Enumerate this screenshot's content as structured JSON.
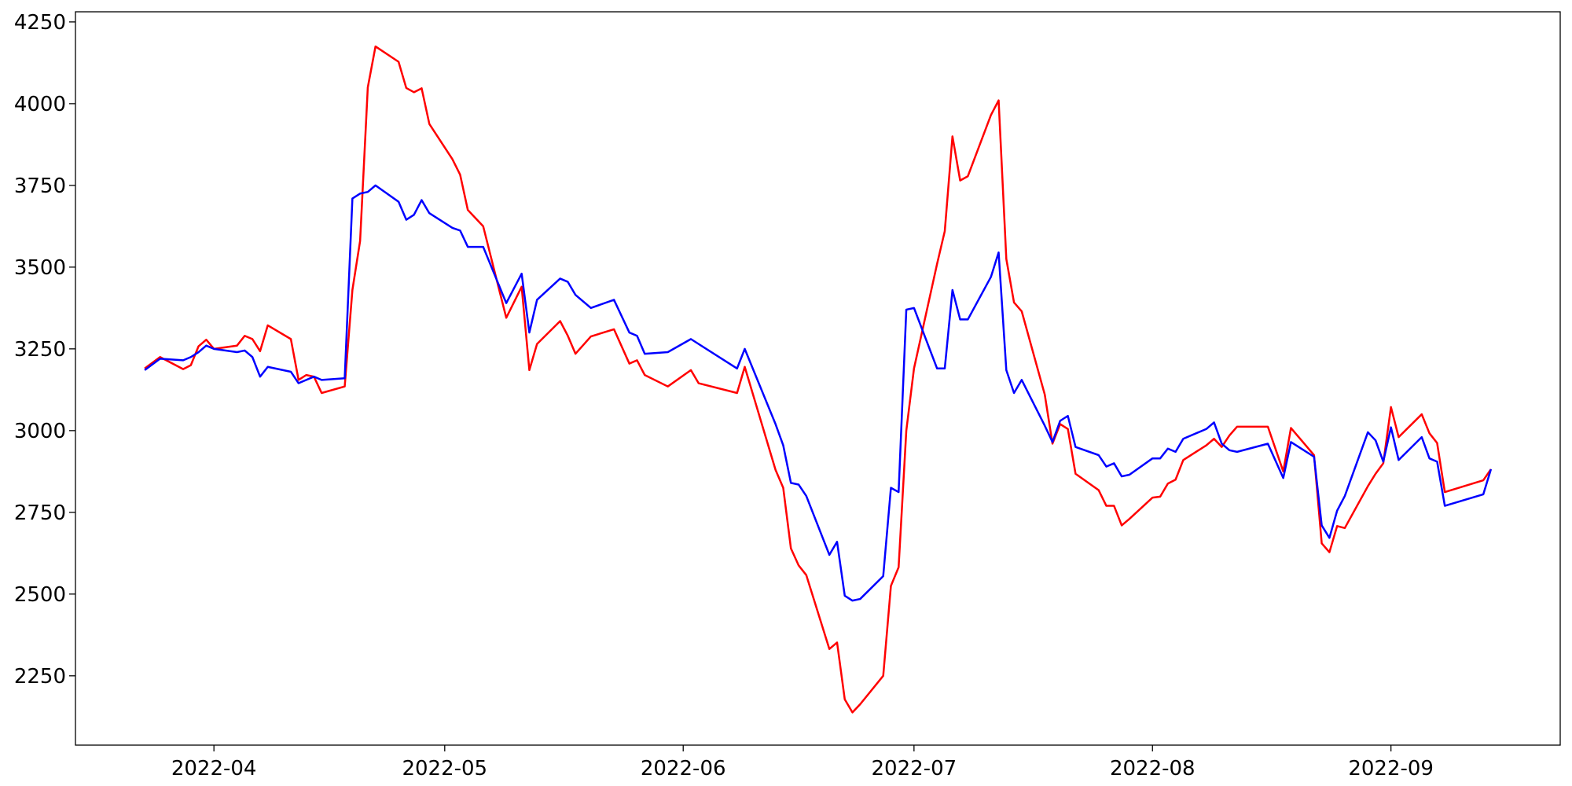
{
  "chart_data": {
    "type": "line",
    "x": [
      "2022-03-23",
      "2022-03-25",
      "2022-03-28",
      "2022-03-29",
      "2022-03-30",
      "2022-03-31",
      "2022-04-01",
      "2022-04-04",
      "2022-04-05",
      "2022-04-06",
      "2022-04-07",
      "2022-04-08",
      "2022-04-11",
      "2022-04-12",
      "2022-04-13",
      "2022-04-14",
      "2022-04-15",
      "2022-04-18",
      "2022-04-19",
      "2022-04-20",
      "2022-04-21",
      "2022-04-22",
      "2022-04-25",
      "2022-04-26",
      "2022-04-27",
      "2022-04-28",
      "2022-04-29",
      "2022-05-02",
      "2022-05-03",
      "2022-05-04",
      "2022-05-05",
      "2022-05-06",
      "2022-05-09",
      "2022-05-11",
      "2022-05-12",
      "2022-05-13",
      "2022-05-16",
      "2022-05-17",
      "2022-05-18",
      "2022-05-20",
      "2022-05-23",
      "2022-05-25",
      "2022-05-26",
      "2022-05-27",
      "2022-05-30",
      "2022-06-02",
      "2022-06-03",
      "2022-06-08",
      "2022-06-09",
      "2022-06-13",
      "2022-06-14",
      "2022-06-15",
      "2022-06-16",
      "2022-06-17",
      "2022-06-20",
      "2022-06-21",
      "2022-06-22",
      "2022-06-23",
      "2022-06-24",
      "2022-06-27",
      "2022-06-28",
      "2022-06-29",
      "2022-06-30",
      "2022-07-01",
      "2022-07-04",
      "2022-07-05",
      "2022-07-06",
      "2022-07-07",
      "2022-07-08",
      "2022-07-11",
      "2022-07-12",
      "2022-07-13",
      "2022-07-14",
      "2022-07-15",
      "2022-07-18",
      "2022-07-19",
      "2022-07-20",
      "2022-07-21",
      "2022-07-22",
      "2022-07-25",
      "2022-07-26",
      "2022-07-27",
      "2022-07-28",
      "2022-07-29",
      "2022-08-01",
      "2022-08-02",
      "2022-08-03",
      "2022-08-04",
      "2022-08-05",
      "2022-08-08",
      "2022-08-09",
      "2022-08-10",
      "2022-08-11",
      "2022-08-12",
      "2022-08-16",
      "2022-08-18",
      "2022-08-19",
      "2022-08-22",
      "2022-08-23",
      "2022-08-24",
      "2022-08-25",
      "2022-08-26",
      "2022-08-29",
      "2022-08-30",
      "2022-08-31",
      "2022-09-01",
      "2022-09-02",
      "2022-09-05",
      "2022-09-06",
      "2022-09-07",
      "2022-09-08",
      "2022-09-13",
      "2022-09-14"
    ],
    "series": [
      {
        "color": "#ff0000",
        "values": [
          3190,
          3225,
          3188,
          3200,
          3258,
          3278,
          3250,
          3260,
          3290,
          3280,
          3243,
          3322,
          3280,
          3155,
          3170,
          3165,
          3115,
          3135,
          3430,
          3580,
          4050,
          4175,
          4128,
          4048,
          4035,
          4047,
          3938,
          3830,
          3783,
          3675,
          3650,
          3625,
          3345,
          3440,
          3185,
          3265,
          3335,
          3290,
          3235,
          3288,
          3310,
          3205,
          3215,
          3170,
          3135,
          3185,
          3145,
          3115,
          3195,
          2880,
          2825,
          2640,
          2588,
          2558,
          2332,
          2352,
          2178,
          2138,
          2163,
          2250,
          2525,
          2582,
          3000,
          3190,
          3510,
          3610,
          3900,
          3765,
          3778,
          3965,
          4010,
          3525,
          3392,
          3365,
          3110,
          2960,
          3020,
          3005,
          2868,
          2818,
          2770,
          2770,
          2710,
          2730,
          2795,
          2798,
          2838,
          2850,
          2910,
          2955,
          2975,
          2950,
          2985,
          3012,
          3012,
          2875,
          3008,
          2925,
          2655,
          2628,
          2708,
          2702,
          2830,
          2868,
          2900,
          3072,
          2980,
          3050,
          2992,
          2962,
          2812,
          2848,
          2882
        ]
      },
      {
        "color": "#0000ff",
        "values": [
          3185,
          3220,
          3215,
          3225,
          3240,
          3260,
          3250,
          3240,
          3245,
          3225,
          3165,
          3195,
          3180,
          3145,
          3155,
          3165,
          3155,
          3160,
          3710,
          3725,
          3730,
          3750,
          3700,
          3645,
          3660,
          3705,
          3665,
          3620,
          3612,
          3562,
          3562,
          3562,
          3390,
          3480,
          3300,
          3400,
          3465,
          3455,
          3415,
          3375,
          3400,
          3300,
          3290,
          3235,
          3240,
          3280,
          3265,
          3190,
          3250,
          3020,
          2955,
          2840,
          2835,
          2800,
          2620,
          2660,
          2495,
          2480,
          2485,
          2555,
          2825,
          2812,
          3370,
          3375,
          3190,
          3190,
          3430,
          3340,
          3340,
          3470,
          3545,
          3185,
          3115,
          3155,
          3015,
          2965,
          3030,
          3045,
          2950,
          2925,
          2890,
          2900,
          2860,
          2865,
          2915,
          2915,
          2945,
          2935,
          2975,
          3005,
          3025,
          2960,
          2940,
          2935,
          2960,
          2855,
          2965,
          2920,
          2710,
          2672,
          2755,
          2800,
          2995,
          2970,
          2905,
          3010,
          2910,
          2980,
          2915,
          2905,
          2770,
          2805,
          2882
        ]
      }
    ],
    "xlim": [
      "2022-03-14",
      "2022-09-23"
    ],
    "xticks": [
      {
        "value": "2022-04-01",
        "label": "2022-04"
      },
      {
        "value": "2022-05-01",
        "label": "2022-05"
      },
      {
        "value": "2022-06-01",
        "label": "2022-06"
      },
      {
        "value": "2022-07-01",
        "label": "2022-07"
      },
      {
        "value": "2022-08-01",
        "label": "2022-08"
      },
      {
        "value": "2022-09-01",
        "label": "2022-09"
      }
    ],
    "ylim": [
      2038,
      4281
    ],
    "yticks": [
      2250,
      2500,
      2750,
      3000,
      3250,
      3500,
      3750,
      4000,
      4250
    ]
  }
}
